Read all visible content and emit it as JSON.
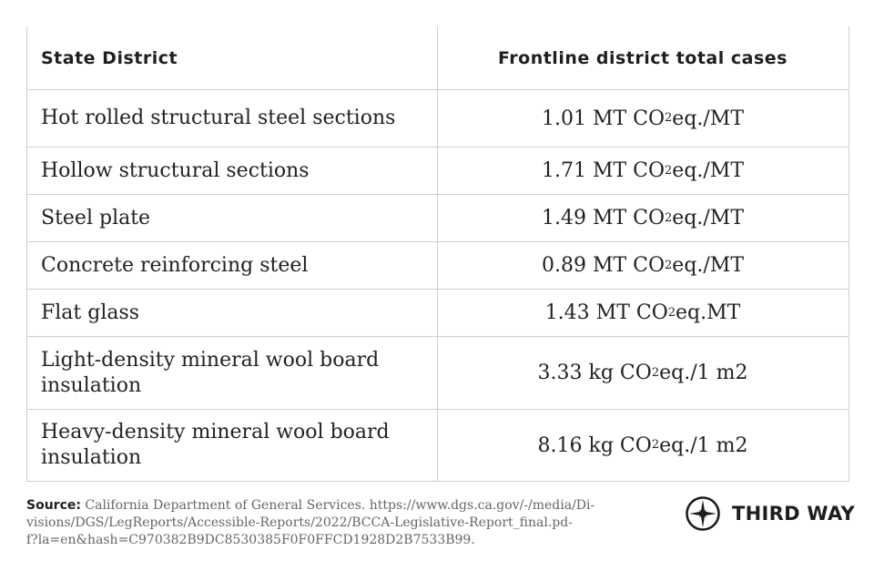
{
  "table": {
    "headers": [
      "State District",
      "Frontline district total cases"
    ],
    "rows": [
      {
        "material": "Hot rolled structural steel sections",
        "value_pre": "1.01 MT CO",
        "sub": "2",
        "value_post": " eq./MT"
      },
      {
        "material": "Hollow structural sections",
        "value_pre": "1.71 MT CO",
        "sub": "2",
        "value_post": " eq./MT"
      },
      {
        "material": "Steel plate",
        "value_pre": "1.49 MT CO",
        "sub": "2",
        "value_post": " eq./MT"
      },
      {
        "material": "Concrete reinforcing steel",
        "value_pre": "0.89 MT CO",
        "sub": "2",
        "value_post": " eq./MT"
      },
      {
        "material": "Flat glass",
        "value_pre": "1.43 MT CO",
        "sub": "2",
        "value_post": " eq.MT"
      },
      {
        "material": "Light-density mineral wool board insulation",
        "value_pre": "3.33 kg CO",
        "sub": "2",
        "value_post": " eq./1 m2"
      },
      {
        "material": "Heavy-density mineral wool board insulation",
        "value_pre": "8.16 kg CO",
        "sub": "2",
        "value_post": " eq./1 m2"
      }
    ]
  },
  "footer": {
    "source_label": "Source:",
    "source_line1": " California Department of General Services. https://www.dgs.ca.gov/-/media/Di-",
    "source_line2": "visions/DGS/LegReports/Accessible-Reports/2022/BCCA-Legislative-Report_final.pd-",
    "source_line3": "f?la=en&hash=C970382B9DC8530385F0F0FFCD1928D2B7533B99."
  },
  "logo": {
    "text": "THIRD WAY",
    "icon": "compass-star-icon"
  }
}
